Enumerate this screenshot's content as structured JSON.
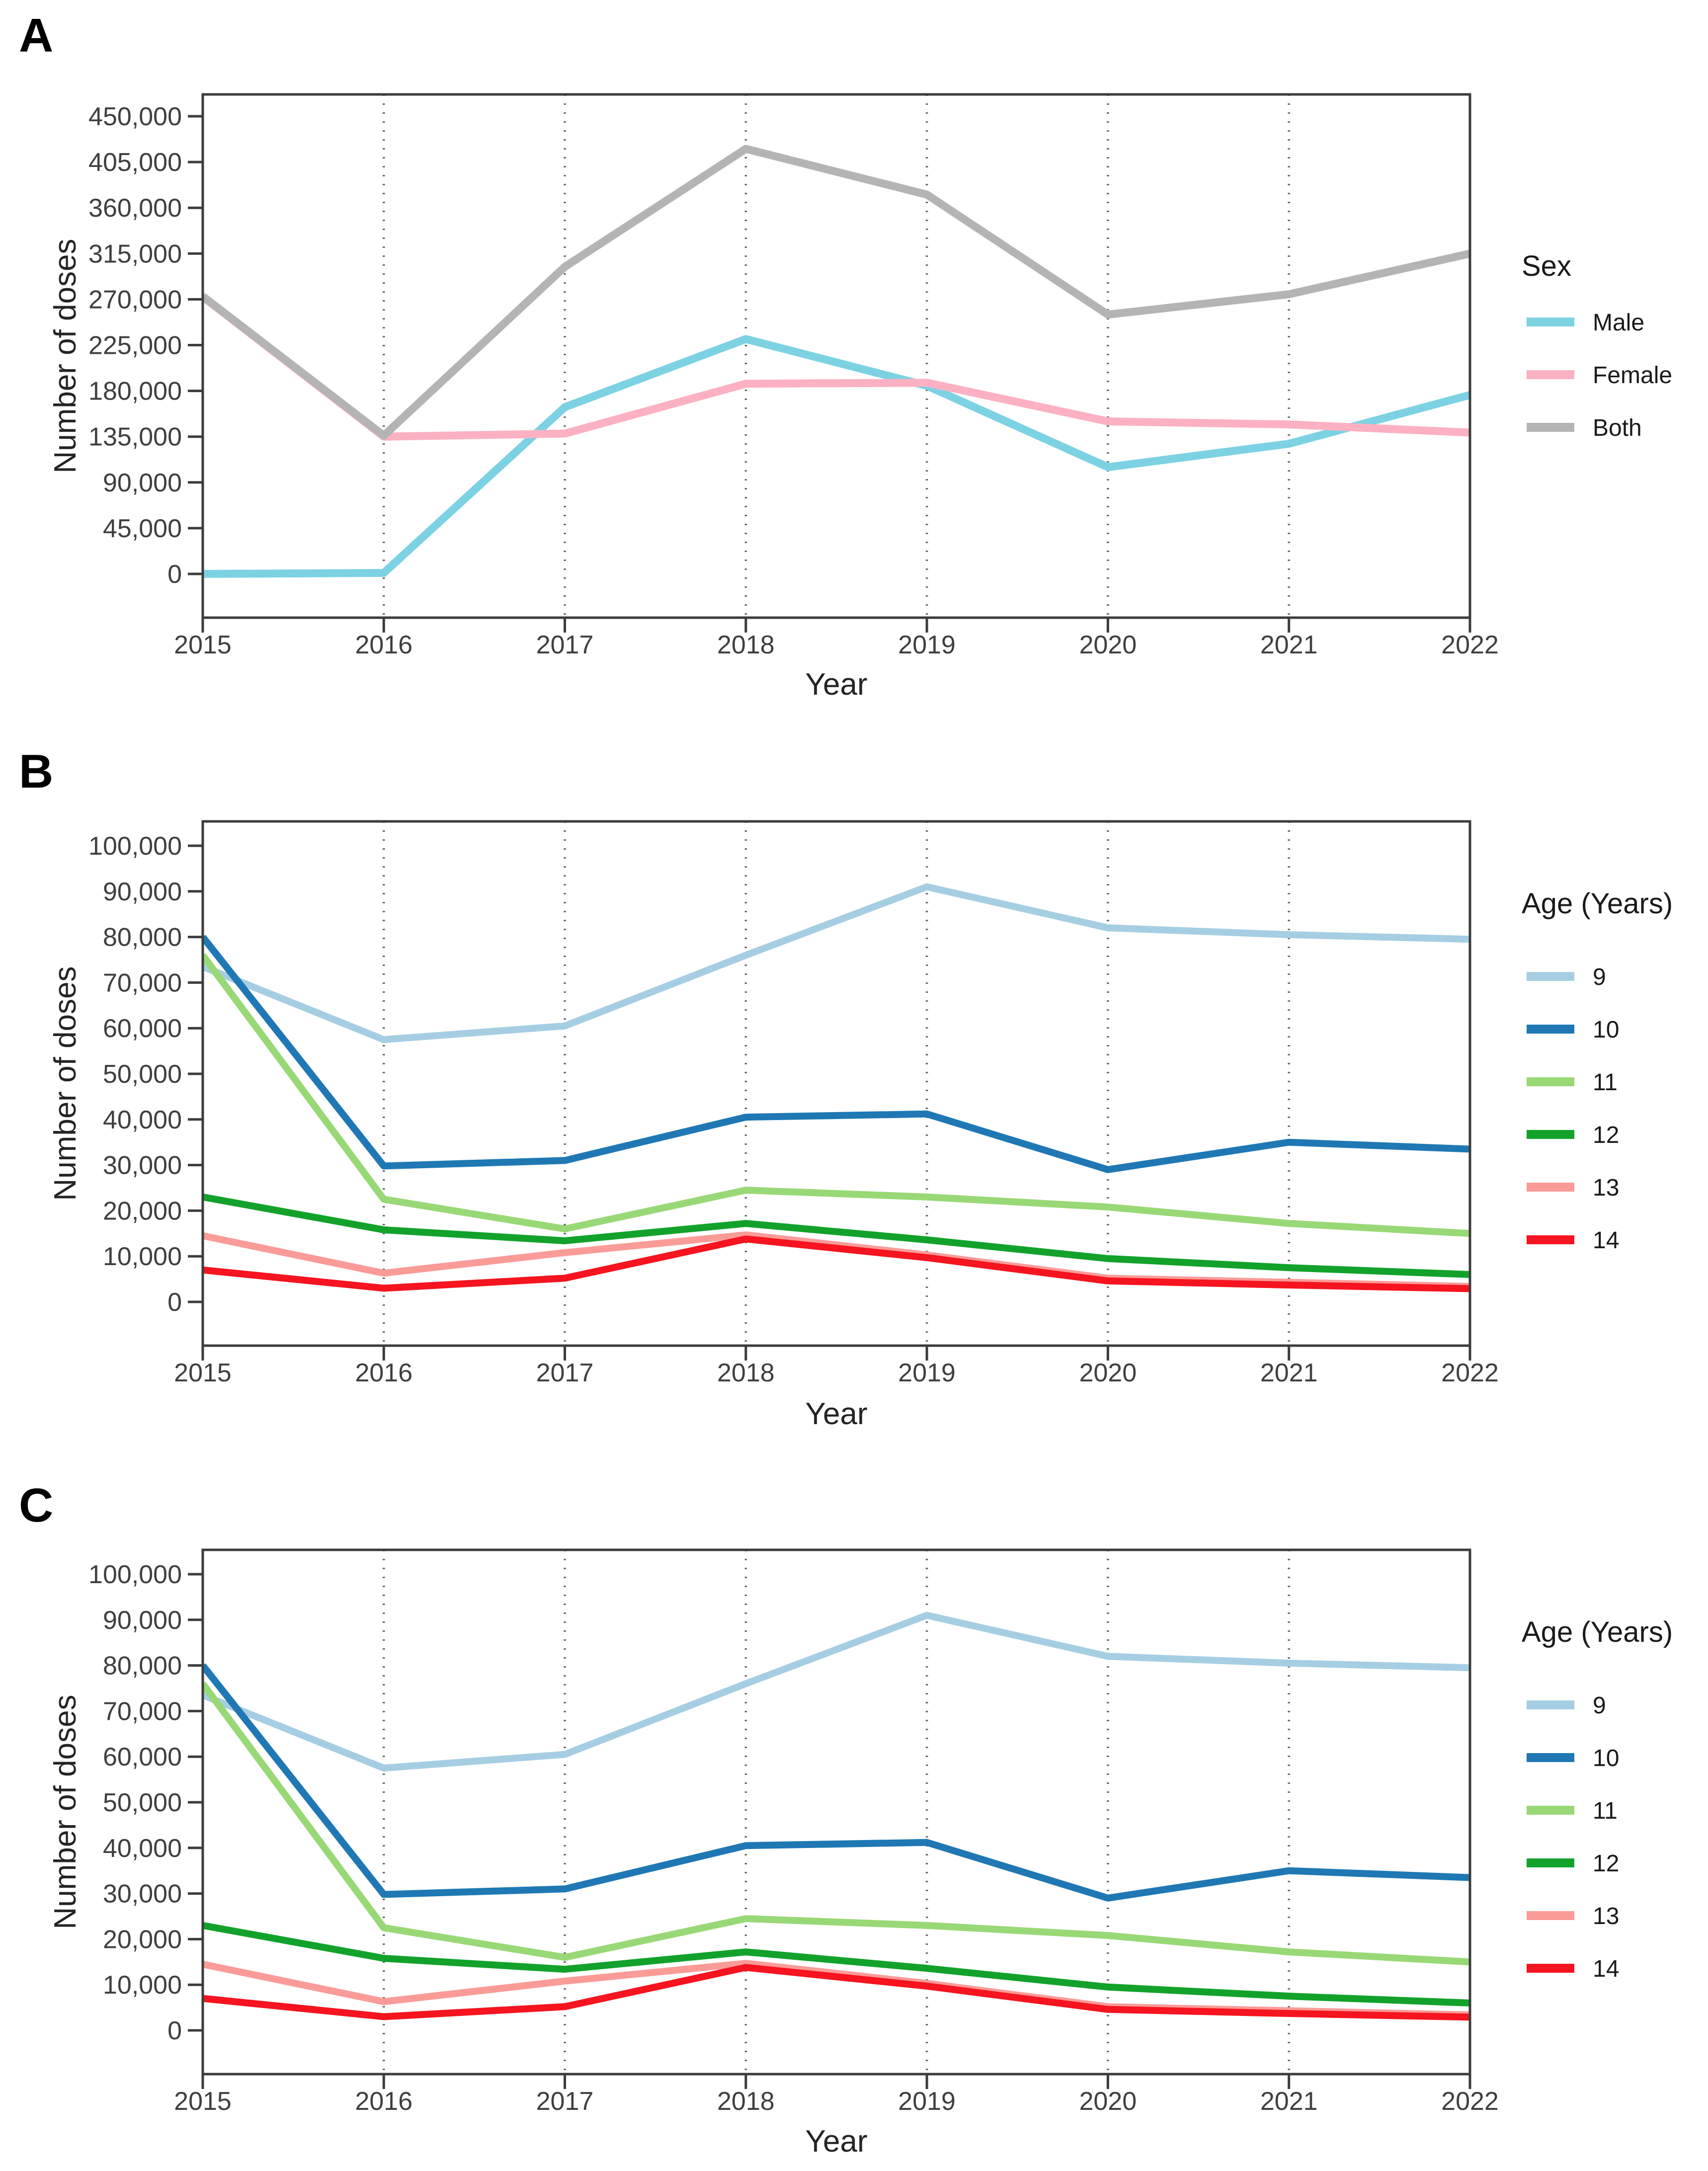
{
  "style_colors": {
    "background": "#FFFFFF",
    "axis_line": "#3C3C3C",
    "axis_text": "#3F3F3F",
    "grid": "#6A6A6A"
  },
  "chart_data": [
    {
      "type": "line",
      "panel_label": "A",
      "xlabel": "Year",
      "ylabel": "Number of doses",
      "legend_title": "Sex",
      "legend_position": "right",
      "grid": "vertical-dotted-interior-years",
      "x": [
        2015,
        2016,
        2017,
        2018,
        2019,
        2020,
        2021,
        2022
      ],
      "ylim": [
        0,
        450000
      ],
      "yticks": [
        0,
        45000,
        90000,
        135000,
        180000,
        225000,
        270000,
        315000,
        360000,
        405000,
        450000
      ],
      "series": [
        {
          "name": "Male",
          "color": "#7CD2E3",
          "values": [
            0,
            1000,
            164000,
            231000,
            185000,
            105000,
            128000,
            176000
          ]
        },
        {
          "name": "Female",
          "color": "#FCB1C3",
          "values": [
            272500,
            135000,
            138000,
            187000,
            188000,
            150000,
            147000,
            139000
          ]
        },
        {
          "name": "Both",
          "color": "#B4B4B4",
          "values": [
            273000,
            136000,
            302000,
            418000,
            373000,
            255000,
            275000,
            315000
          ]
        }
      ]
    },
    {
      "type": "line",
      "panel_label": "B",
      "xlabel": "Year",
      "ylabel": "Number of doses",
      "legend_title": "Age (Years)",
      "legend_position": "right",
      "grid": "vertical-dotted-interior-years",
      "x": [
        2015,
        2016,
        2017,
        2018,
        2019,
        2020,
        2021,
        2022
      ],
      "ylim": [
        0,
        100000
      ],
      "yticks": [
        0,
        10000,
        20000,
        30000,
        40000,
        50000,
        60000,
        70000,
        80000,
        90000,
        100000
      ],
      "series": [
        {
          "name": "9",
          "color": "#A6CEE3",
          "values": [
            73500,
            57500,
            60500,
            76000,
            91000,
            82000,
            80500,
            79500
          ]
        },
        {
          "name": "10",
          "color": "#1F78B4",
          "values": [
            80000,
            29800,
            31000,
            40500,
            41200,
            29000,
            35000,
            33500
          ]
        },
        {
          "name": "11",
          "color": "#99D876",
          "values": [
            76000,
            22500,
            16000,
            24500,
            23000,
            20800,
            17200,
            15000
          ]
        },
        {
          "name": "12",
          "color": "#12A22B",
          "values": [
            23000,
            15800,
            13400,
            17200,
            13600,
            9500,
            7500,
            6000
          ]
        },
        {
          "name": "13",
          "color": "#FA9B98",
          "values": [
            14500,
            6300,
            10800,
            14700,
            10300,
            5200,
            4300,
            3400
          ]
        },
        {
          "name": "14",
          "color": "#F5141F",
          "values": [
            7000,
            3000,
            5200,
            13800,
            9700,
            4600,
            3700,
            2900
          ]
        }
      ]
    },
    {
      "type": "line",
      "panel_label": "C",
      "xlabel": "Year",
      "ylabel": "Number of doses",
      "legend_title": "Age (Years)",
      "legend_position": "right",
      "grid": "vertical-dotted-interior-years",
      "x": [
        2015,
        2016,
        2017,
        2018,
        2019,
        2020,
        2021,
        2022
      ],
      "ylim": [
        0,
        100000
      ],
      "yticks": [
        0,
        10000,
        20000,
        30000,
        40000,
        50000,
        60000,
        70000,
        80000,
        90000,
        100000
      ],
      "series": [
        {
          "name": "9",
          "color": "#A6CEE3",
          "values": [
            73500,
            57500,
            60500,
            76000,
            91000,
            82000,
            80500,
            79500
          ]
        },
        {
          "name": "10",
          "color": "#1F78B4",
          "values": [
            80000,
            29800,
            31000,
            40500,
            41200,
            29000,
            35000,
            33500
          ]
        },
        {
          "name": "11",
          "color": "#99D876",
          "values": [
            76000,
            22500,
            16000,
            24500,
            23000,
            20800,
            17200,
            15000
          ]
        },
        {
          "name": "12",
          "color": "#12A22B",
          "values": [
            23000,
            15800,
            13400,
            17200,
            13600,
            9500,
            7500,
            6000
          ]
        },
        {
          "name": "13",
          "color": "#FA9B98",
          "values": [
            14500,
            6300,
            10800,
            14700,
            10300,
            5200,
            4300,
            3400
          ]
        },
        {
          "name": "14",
          "color": "#F5141F",
          "values": [
            7000,
            3000,
            5200,
            13800,
            9700,
            4600,
            3700,
            2900
          ]
        }
      ]
    }
  ]
}
